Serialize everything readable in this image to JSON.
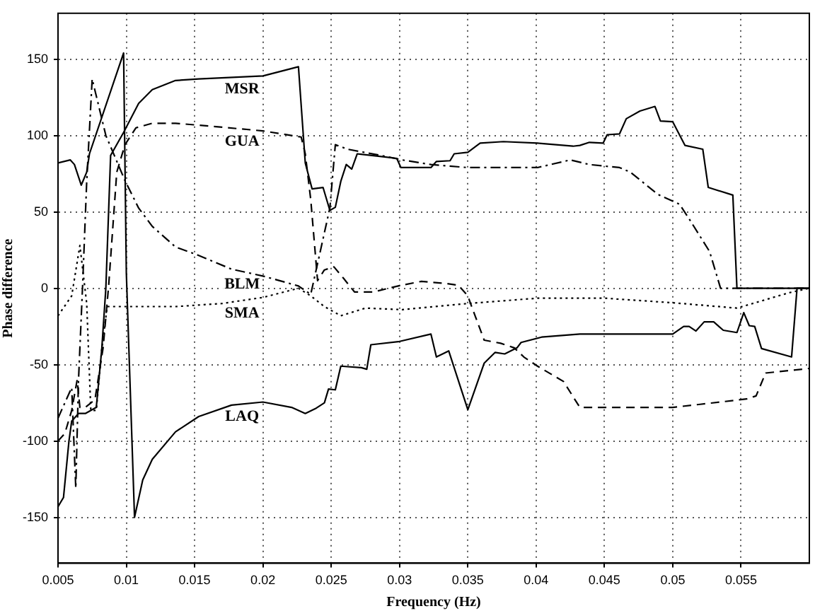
{
  "chart_data": {
    "type": "line",
    "xlabel": "Frequency (Hz)",
    "ylabel": "Phase difference",
    "xlim": [
      0.005,
      0.06
    ],
    "ylim": [
      -180,
      180
    ],
    "xticks": [
      0.005,
      0.01,
      0.015,
      0.02,
      0.025,
      0.03,
      0.035,
      0.04,
      0.045,
      0.05,
      0.055
    ],
    "yticks": [
      -150,
      -100,
      -50,
      0,
      50,
      100,
      150
    ],
    "grid": true,
    "legend": false,
    "marker": "none",
    "series": [
      {
        "name": "MSR",
        "color": "#000000",
        "line_style": "solid",
        "x": [
          0.005,
          0.0054,
          0.0058,
          0.006,
          0.0065,
          0.007,
          0.0078,
          0.0082,
          0.0085,
          0.00885,
          0.0098,
          0.0109,
          0.0119,
          0.0136,
          0.0153,
          0.02,
          0.0226,
          0.0231,
          0.0236,
          0.0244,
          0.0249,
          0.0253,
          0.0257,
          0.0261,
          0.0265,
          0.0269,
          0.0289,
          0.0298,
          0.0301,
          0.0323,
          0.0327,
          0.0337,
          0.034,
          0.035,
          0.0359,
          0.0376,
          0.0401,
          0.0427,
          0.0432,
          0.0439,
          0.0449,
          0.0452,
          0.0461,
          0.0466,
          0.0476,
          0.0487,
          0.0491,
          0.05,
          0.0509,
          0.0522,
          0.0526,
          0.0544,
          0.0547,
          0.06
        ],
        "values": [
          -143,
          -137,
          -100,
          -87,
          -82,
          -82,
          -78,
          -40,
          0,
          87,
          102,
          121,
          130,
          136,
          137,
          139,
          145,
          82,
          65,
          66,
          51,
          53,
          70,
          81,
          78,
          88,
          86,
          85,
          79,
          79,
          83,
          83.5,
          88,
          89,
          95,
          96,
          95,
          93,
          93.5,
          95.5,
          95,
          100.5,
          101,
          111,
          116,
          119,
          109.5,
          109,
          93.5,
          91,
          66,
          61,
          0,
          0
        ]
      },
      {
        "name": "GUA",
        "color": "#000000",
        "line_style": "dashed",
        "x": [
          0.005,
          0.0055,
          0.006,
          0.0064,
          0.0066,
          0.007,
          0.0077,
          0.0083,
          0.0087,
          0.0093,
          0.0099,
          0.0107,
          0.0119,
          0.0136,
          0.0163,
          0.02,
          0.0228,
          0.0231,
          0.0235,
          0.024,
          0.0245,
          0.0252,
          0.0259,
          0.0267,
          0.0281,
          0.0299,
          0.0316,
          0.0335,
          0.0343,
          0.035,
          0.0353,
          0.0362,
          0.0374,
          0.0384,
          0.0391,
          0.0401,
          0.042,
          0.0432,
          0.05,
          0.052,
          0.0554,
          0.0561,
          0.0568,
          0.06
        ],
        "values": [
          -100,
          -95,
          -80,
          -60,
          -78,
          -78,
          -73,
          -39,
          1,
          76,
          94,
          105,
          108,
          108,
          106,
          103,
          99,
          88,
          58,
          5,
          12,
          14,
          6.5,
          -2.4,
          -2.4,
          1.5,
          4.5,
          3,
          2,
          -5,
          -12.5,
          -34,
          -36,
          -39,
          -45,
          -51,
          -61,
          -78,
          -78,
          -76,
          -72.5,
          -70.5,
          -55.5,
          -52.5
        ]
      },
      {
        "name": "BLM",
        "color": "#000000",
        "line_style": "dashdot",
        "x": [
          0.005,
          0.0055,
          0.006,
          0.0063,
          0.0065,
          0.0068,
          0.0071,
          0.0075,
          0.0085,
          0.0099,
          0.0109,
          0.0119,
          0.0136,
          0.0153,
          0.0177,
          0.02,
          0.0226,
          0.0235,
          0.0249,
          0.0253,
          0.0262,
          0.0289,
          0.0302,
          0.0323,
          0.035,
          0.0401,
          0.0425,
          0.0439,
          0.0461,
          0.0469,
          0.0489,
          0.0505,
          0.0513,
          0.0527,
          0.0535,
          0.06
        ],
        "values": [
          -85,
          -75,
          -65,
          -131,
          -60,
          2,
          70,
          137,
          100,
          70.5,
          52.5,
          40.5,
          27,
          21.5,
          12.5,
          8,
          1.5,
          -4,
          52.5,
          94,
          91,
          86.5,
          84,
          81,
          79,
          79,
          84,
          81,
          79,
          76,
          61.5,
          55,
          44,
          24,
          0,
          0
        ]
      },
      {
        "name": "SMA",
        "color": "#000000",
        "line_style": "dotted",
        "x": [
          0.005,
          0.006,
          0.0066,
          0.0071,
          0.0074,
          0.0078,
          0.0082,
          0.0086,
          0.01,
          0.0136,
          0.017,
          0.02,
          0.0226,
          0.0235,
          0.0245,
          0.0257,
          0.0275,
          0.0302,
          0.035,
          0.0401,
          0.045,
          0.05,
          0.0547,
          0.0585,
          0.06
        ],
        "values": [
          -18,
          -5,
          28,
          -10,
          -80,
          -80,
          -40,
          -12,
          -12,
          -12,
          -10,
          -6,
          0,
          -5,
          -12,
          -18,
          -13,
          -14,
          -10,
          -6.5,
          -6.5,
          -9.5,
          -13,
          -3,
          0
        ]
      },
      {
        "name": "LAQ",
        "color": "#000000",
        "line_style": "solid",
        "x": [
          0.005,
          0.0059,
          0.0062,
          0.0067,
          0.0071,
          0.0073,
          0.0098,
          0.01,
          0.0106,
          0.0112,
          0.0119,
          0.0136,
          0.0153,
          0.0177,
          0.02,
          0.0221,
          0.0231,
          0.0239,
          0.0245,
          0.0248,
          0.0253,
          0.0257,
          0.0272,
          0.0276,
          0.0279,
          0.0299,
          0.0323,
          0.0327,
          0.0336,
          0.035,
          0.0362,
          0.037,
          0.0377,
          0.0386,
          0.0389,
          0.0404,
          0.0432,
          0.05,
          0.0508,
          0.0512,
          0.0517,
          0.0523,
          0.053,
          0.0537,
          0.0547,
          0.0552,
          0.0556,
          0.056,
          0.0565,
          0.0587,
          0.0591,
          0.06
        ],
        "values": [
          82,
          84,
          81,
          67.5,
          76,
          88,
          154,
          10,
          -150,
          -125.5,
          -112,
          -94,
          -84,
          -76.5,
          -74.5,
          -78,
          -82,
          -78.5,
          -75,
          -66,
          -66.5,
          -51,
          -52,
          -53,
          -37,
          -35,
          -30,
          -45,
          -41,
          -79.5,
          -49,
          -42,
          -43,
          -39,
          -35.5,
          -32,
          -30,
          -30,
          -25,
          -25,
          -28,
          -22,
          -22,
          -27.5,
          -29,
          -16,
          -24.5,
          -25,
          -39.5,
          -45,
          0,
          0
        ]
      }
    ]
  }
}
